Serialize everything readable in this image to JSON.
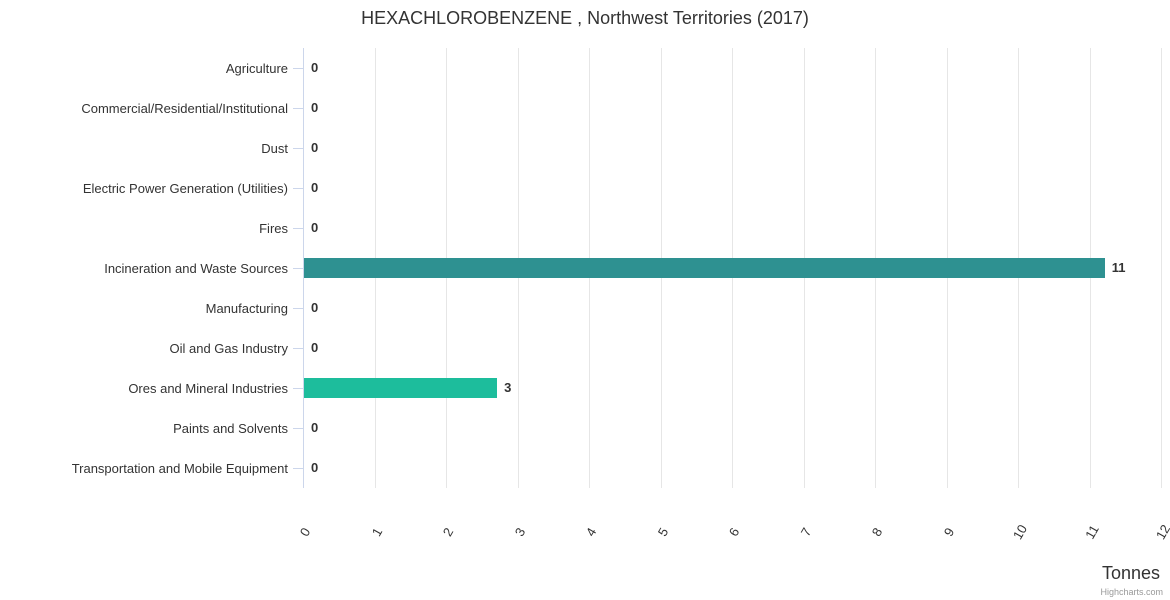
{
  "title": "HEXACHLOROBENZENE , Northwest Territories (2017)",
  "x_axis_title": "Tonnes",
  "credits": "Highcharts.com",
  "chart_data": {
    "type": "bar",
    "orientation": "horizontal",
    "title": "HEXACHLOROBENZENE , Northwest Territories (2017)",
    "categories": [
      "Agriculture",
      "Commercial/Residential/Institutional",
      "Dust",
      "Electric Power Generation (Utilities)",
      "Fires",
      "Incineration and Waste Sources",
      "Manufacturing",
      "Oil and Gas Industry",
      "Ores and Mineral Industries",
      "Paints and Solvents",
      "Transportation and Mobile Equipment"
    ],
    "values": [
      0,
      0,
      0,
      0,
      0,
      11.2,
      0,
      0,
      2.7,
      0,
      0
    ],
    "data_labels": [
      "0",
      "0",
      "0",
      "0",
      "0",
      "11",
      "0",
      "0",
      "3",
      "0",
      "0"
    ],
    "xlabel": "Tonnes",
    "ylabel": "",
    "xlim": [
      0,
      12
    ],
    "xticks": [
      "0",
      "1",
      "2",
      "3",
      "4",
      "5",
      "6",
      "7",
      "8",
      "9",
      "10",
      "11",
      "12"
    ],
    "grid": true,
    "legend": false,
    "bar_colors": {
      "5": "#2e9191",
      "8": "#1dbd9c"
    }
  },
  "colors": {
    "bar_incineration": "#2e9191",
    "bar_ores": "#1dbd9c",
    "gridline": "#e6e6e6",
    "axis_line": "#ccd6eb",
    "text": "#333333",
    "credits_text": "#999999",
    "background": "#ffffff"
  }
}
